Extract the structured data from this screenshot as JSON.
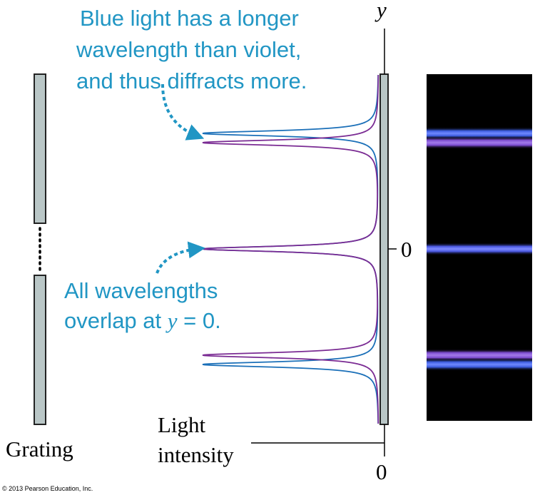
{
  "annotations": {
    "blue_diffracts": [
      "Blue light has a longer",
      "wavelength than violet,",
      "and thus diffracts more."
    ],
    "overlap_line1": "All wavelengths",
    "overlap_line2_prefix": "overlap at ",
    "overlap_var": "y",
    "overlap_line2_suffix": " = 0."
  },
  "labels": {
    "grating": "Grating",
    "intensity": [
      "Light",
      "intensity"
    ],
    "y_axis": "y",
    "y_zero": "0",
    "intensity_zero": "0"
  },
  "copyright": "© 2013 Pearson Education, Inc.",
  "colors": {
    "annotation": "#2196c4",
    "blue_curve": "#1a6fb8",
    "violet_curve": "#7a2b93",
    "grating_fill": "#b9c6c6",
    "band_blue": "#3c5ce0",
    "band_violet": "#7c4cd0",
    "screen": "#000000"
  }
}
